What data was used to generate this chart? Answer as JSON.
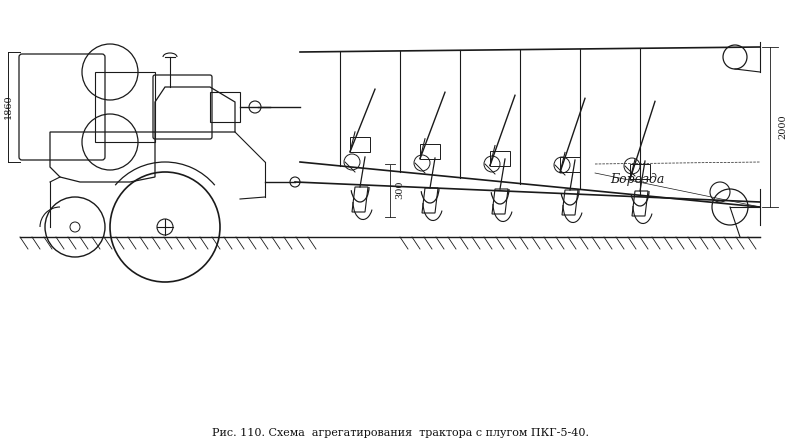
{
  "bg_color": "#ffffff",
  "line_color": "#1a1a1a",
  "caption": "Рис. 110. Схема  агрегатирования  трактора с плугом ПКГ-5-40.",
  "label_borozda": "Борозда",
  "label_300": "300",
  "label_1860": "1860",
  "label_2000": "2000",
  "figsize": [
    8.0,
    4.47
  ],
  "dpi": 100
}
